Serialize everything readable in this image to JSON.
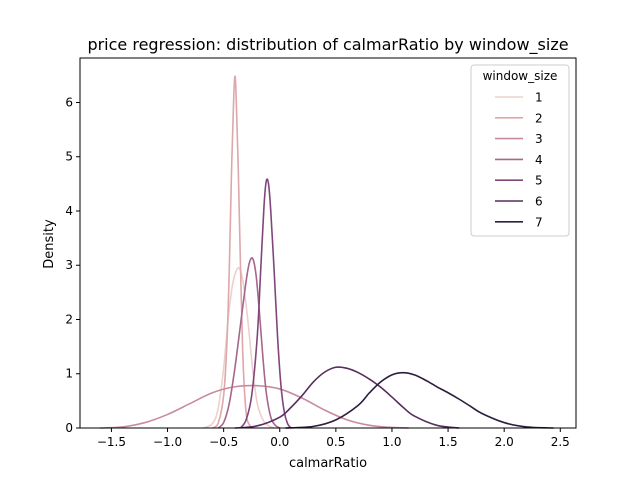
{
  "chart_data": {
    "type": "line",
    "title": "price regression: distribution of calmarRatio by window_size",
    "xlabel": "calmarRatio",
    "ylabel": "Density",
    "xlim": [
      -1.78,
      2.64
    ],
    "ylim": [
      0,
      6.82
    ],
    "xticks": [
      -1.5,
      -1.0,
      -0.5,
      0.0,
      0.5,
      1.0,
      1.5,
      2.0,
      2.5
    ],
    "xtick_labels": [
      "−1.5",
      "−1.0",
      "−0.5",
      "0.0",
      "0.5",
      "1.0",
      "1.5",
      "2.0",
      "2.5"
    ],
    "yticks": [
      0,
      1,
      2,
      3,
      4,
      5,
      6
    ],
    "ytick_labels": [
      "0",
      "1",
      "2",
      "3",
      "4",
      "5",
      "6"
    ],
    "grid": false,
    "legend": {
      "title": "window_size",
      "placement": "top-right"
    },
    "series": [
      {
        "name": "1",
        "color": "#ecd0cb",
        "x": [
          -0.68,
          -0.6,
          -0.55,
          -0.5,
          -0.46,
          -0.42,
          -0.38,
          -0.35,
          -0.32,
          -0.28,
          -0.24,
          -0.2,
          -0.15,
          -0.1,
          -0.05
        ],
        "y": [
          0,
          0.08,
          0.35,
          1.1,
          2.0,
          2.65,
          2.93,
          2.9,
          2.6,
          1.9,
          1.05,
          0.45,
          0.15,
          0.04,
          0
        ]
      },
      {
        "name": "2",
        "color": "#dda7ab",
        "x": [
          -0.6,
          -0.55,
          -0.5,
          -0.47,
          -0.45,
          -0.43,
          -0.41,
          -0.4,
          -0.39,
          -0.37,
          -0.35,
          -0.33,
          -0.31,
          -0.29,
          -0.25
        ],
        "y": [
          0,
          0.08,
          0.6,
          1.6,
          2.9,
          4.7,
          6.1,
          6.48,
          6.2,
          4.8,
          3.0,
          1.4,
          0.55,
          0.15,
          0
        ]
      },
      {
        "name": "3",
        "color": "#c88b9d",
        "x": [
          -1.6,
          -1.4,
          -1.2,
          -1.0,
          -0.8,
          -0.6,
          -0.4,
          -0.2,
          0.0,
          0.2,
          0.4,
          0.6,
          0.8,
          1.0,
          1.15
        ],
        "y": [
          0,
          0.02,
          0.1,
          0.25,
          0.45,
          0.65,
          0.76,
          0.78,
          0.72,
          0.55,
          0.33,
          0.15,
          0.05,
          0.01,
          0
        ]
      },
      {
        "name": "4",
        "color": "#a7668b",
        "x": [
          -0.55,
          -0.5,
          -0.45,
          -0.4,
          -0.35,
          -0.3,
          -0.27,
          -0.24,
          -0.21,
          -0.18,
          -0.15,
          -0.12,
          -0.08,
          -0.04,
          0.0
        ],
        "y": [
          0,
          0.1,
          0.45,
          1.1,
          1.9,
          2.7,
          3.05,
          3.12,
          2.8,
          2.1,
          1.3,
          0.65,
          0.2,
          0.05,
          0
        ]
      },
      {
        "name": "5",
        "color": "#80467c",
        "x": [
          -0.35,
          -0.3,
          -0.25,
          -0.2,
          -0.17,
          -0.14,
          -0.12,
          -0.1,
          -0.08,
          -0.05,
          -0.02,
          0.01,
          0.04,
          0.07,
          0.1
        ],
        "y": [
          0,
          0.15,
          0.6,
          1.7,
          2.9,
          4.1,
          4.55,
          4.5,
          4.0,
          2.9,
          1.7,
          0.8,
          0.3,
          0.08,
          0
        ]
      },
      {
        "name": "6",
        "color": "#582d5f",
        "x": [
          -0.4,
          -0.2,
          0.0,
          0.1,
          0.2,
          0.3,
          0.4,
          0.5,
          0.6,
          0.7,
          0.8,
          0.9,
          1.0,
          1.1,
          1.2,
          1.4,
          1.6
        ],
        "y": [
          0,
          0.04,
          0.2,
          0.38,
          0.6,
          0.85,
          1.03,
          1.12,
          1.1,
          1.02,
          0.9,
          0.75,
          0.57,
          0.38,
          0.22,
          0.05,
          0
        ]
      },
      {
        "name": "7",
        "color": "#2d1e3e",
        "x": [
          0.05,
          0.3,
          0.5,
          0.7,
          0.8,
          0.9,
          1.0,
          1.1,
          1.2,
          1.3,
          1.4,
          1.5,
          1.6,
          1.7,
          1.8,
          2.0,
          2.2,
          2.44
        ],
        "y": [
          0,
          0.03,
          0.15,
          0.42,
          0.65,
          0.85,
          0.98,
          1.02,
          0.98,
          0.88,
          0.76,
          0.65,
          0.53,
          0.4,
          0.27,
          0.1,
          0.02,
          0
        ]
      }
    ]
  }
}
